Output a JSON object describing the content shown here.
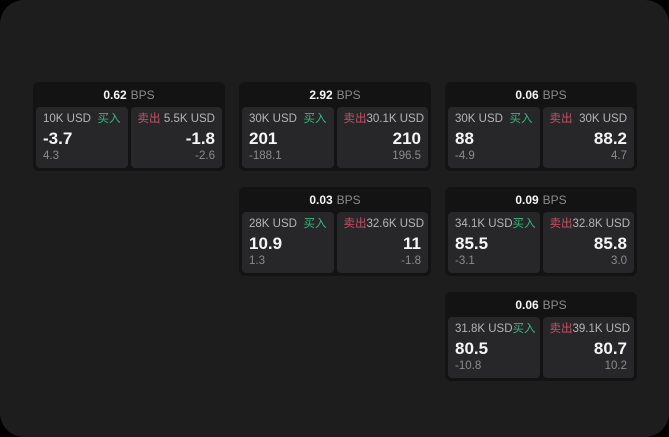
{
  "labels": {
    "bps": "BPS",
    "buy": "买入",
    "sell": "卖出"
  },
  "colors": {
    "buy_green": "#35b87d",
    "sell_red": "#c7506a",
    "page_bg": "#1d1d1e",
    "card_bg": "#131314",
    "panel_bg": "#27272a"
  },
  "cards": [
    {
      "bps": "0.62",
      "buy": {
        "amount": "10K USD",
        "value": "-3.7",
        "delta": "4.3"
      },
      "sell": {
        "amount": "5.5K USD",
        "value": "-1.8",
        "delta": "-2.6"
      }
    },
    {
      "bps": "2.92",
      "buy": {
        "amount": "30K USD",
        "value": "201",
        "delta": "-188.1"
      },
      "sell": {
        "amount": "30.1K USD",
        "value": "210",
        "delta": "196.5"
      }
    },
    {
      "bps": "0.06",
      "buy": {
        "amount": "30K USD",
        "value": "88",
        "delta": "-4.9"
      },
      "sell": {
        "amount": "30K USD",
        "value": "88.2",
        "delta": "4.7"
      }
    },
    {
      "bps": "0.03",
      "buy": {
        "amount": "28K USD",
        "value": "10.9",
        "delta": "1.3"
      },
      "sell": {
        "amount": "32.6K USD",
        "value": "11",
        "delta": "-1.8"
      }
    },
    {
      "bps": "0.09",
      "buy": {
        "amount": "34.1K USD",
        "value": "85.5",
        "delta": "-3.1"
      },
      "sell": {
        "amount": "32.8K USD",
        "value": "85.8",
        "delta": "3.0"
      }
    },
    {
      "bps": "0.06",
      "buy": {
        "amount": "31.8K USD",
        "value": "80.5",
        "delta": "-10.8"
      },
      "sell": {
        "amount": "39.1K USD",
        "value": "80.7",
        "delta": "10.2"
      }
    }
  ]
}
